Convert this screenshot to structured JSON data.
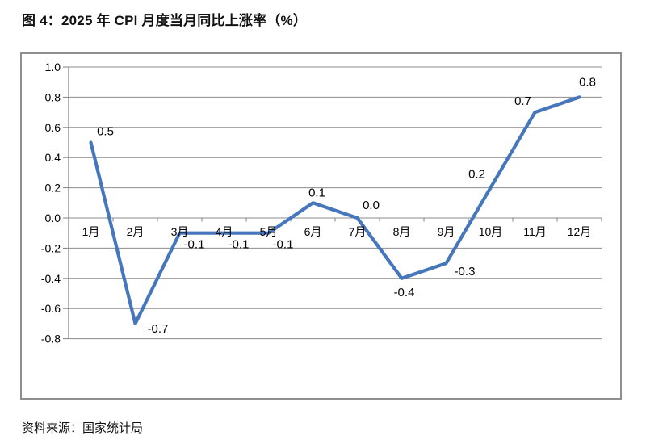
{
  "page": {
    "title": "图 4：2025 年 CPI 月度当月同比上涨率（%）",
    "source_note": "资料来源：国家统计局"
  },
  "chart_data": {
    "type": "line",
    "title": "2025 年 CPI 月度当月同比上涨率（%）",
    "categories": [
      "1月",
      "2月",
      "3月",
      "4月",
      "5月",
      "6月",
      "7月",
      "8月",
      "9月",
      "10月",
      "11月",
      "12月"
    ],
    "values": [
      0.5,
      -0.7,
      -0.1,
      -0.1,
      -0.1,
      0.1,
      0.0,
      -0.4,
      -0.3,
      0.2,
      0.7,
      0.8
    ],
    "data_labels": [
      "0.5",
      "-0.7",
      "-0.1",
      "-0.1",
      "-0.1",
      "0.1",
      "0.0",
      "-0.4",
      "-0.3",
      "0.2",
      "0.7",
      "0.8"
    ],
    "xlabel": "",
    "ylabel": "",
    "ylim": [
      -0.8,
      1.0
    ],
    "y_tick_labels": [
      "1.0",
      "0.8",
      "0.6",
      "0.4",
      "0.2",
      "0.0",
      "-0.2",
      "-0.4",
      "-0.6",
      "-0.8"
    ],
    "grid": true,
    "legend": "none",
    "colors": {
      "line": "#4677BD",
      "gridline": "#8C8C8C",
      "axis": "#808080",
      "text": "#000000",
      "frame_border": "#8F8F8F"
    }
  }
}
